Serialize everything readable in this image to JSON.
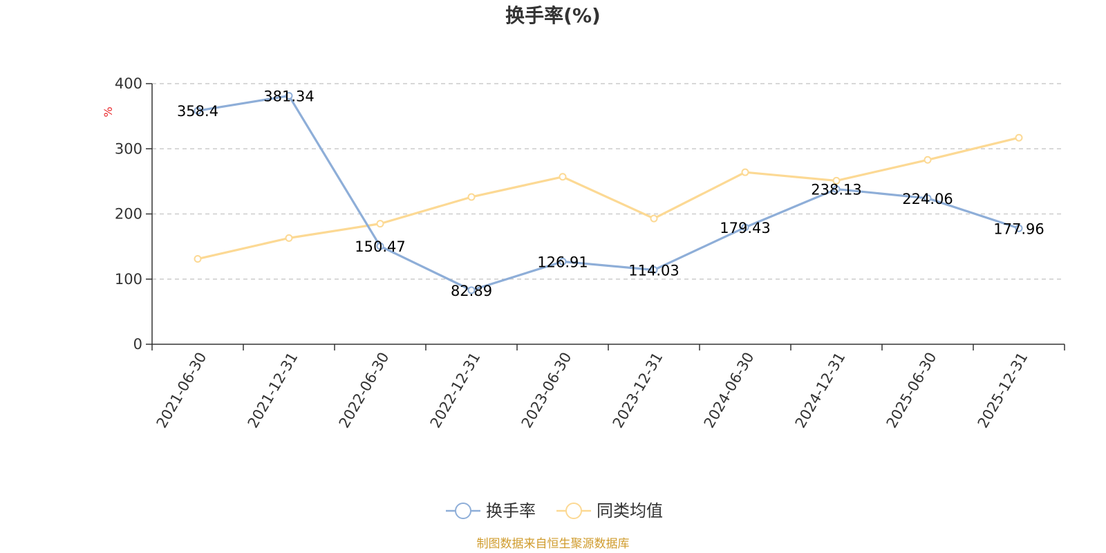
{
  "chart_data": {
    "type": "line",
    "title": "换手率(%)",
    "ylabel": "%",
    "xlabel": "",
    "ylim": [
      0,
      400
    ],
    "yticks": [
      0,
      100,
      200,
      300,
      400
    ],
    "grid": true,
    "legend_position": "bottom",
    "categories": [
      "2021-06-30",
      "2021-12-31",
      "2022-06-30",
      "2022-12-31",
      "2023-06-30",
      "2023-12-31",
      "2024-06-30",
      "2024-12-31",
      "2025-06-30",
      "2025-12-31"
    ],
    "series": [
      {
        "name": "换手率",
        "color": "#8eaed8",
        "values": [
          358.4,
          381.34,
          150.47,
          82.89,
          126.91,
          114.03,
          179.43,
          238.13,
          224.06,
          177.96
        ],
        "labels": [
          "358.4",
          "381.34",
          "150.47",
          "82.89",
          "126.91",
          "114.03",
          "179.43",
          "238.13",
          "224.06",
          "177.96"
        ],
        "show_labels": true
      },
      {
        "name": "同类均值",
        "color": "#fcd994",
        "values": [
          131,
          163,
          185,
          226,
          257,
          193,
          264,
          251,
          283,
          317
        ],
        "show_labels": false
      }
    ]
  },
  "footer": {
    "source": "制图数据来自恒生聚源数据库"
  },
  "colors": {
    "unit_label": "#e8262a",
    "source_text": "#d09c2e",
    "axis": "#333333",
    "grid": "#cccccc"
  }
}
